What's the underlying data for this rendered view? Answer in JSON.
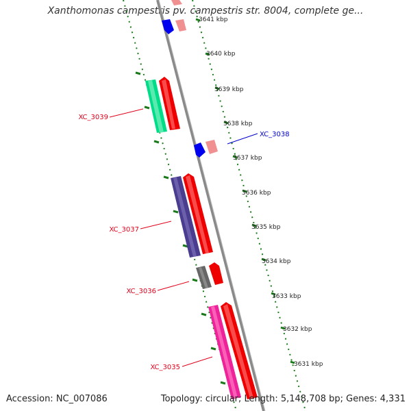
{
  "title": "Xanthomonas campestris pv. campestris str. 8004, complete ge...",
  "accession_text": "Accession: NC_007086",
  "summary_text": "Topology: circular; Length: 5,148,708 bp; Genes: 4,331",
  "kbp_labels": [
    "3641 kbp",
    "3640 kbp",
    "3639 kbp",
    "3638 kbp",
    "3637 kbp",
    "3636 kbp",
    "3635 kbp",
    "3634 kbp",
    "3633 kbp",
    "3632 kbp",
    "3631 kbp"
  ],
  "gene_labels": [
    {
      "name": "XC_3039",
      "color": "#e0001b"
    },
    {
      "name": "XC_3038",
      "color": "#0000cc"
    },
    {
      "name": "XC_3037",
      "color": "#e0001b"
    },
    {
      "name": "XC_3036",
      "color": "#e0001b"
    },
    {
      "name": "XC_3035",
      "color": "#e0001b"
    }
  ],
  "colors": {
    "backbone": "#8a8a8a",
    "ruler": "#1a7a1a",
    "cds_forward": "#ee0000",
    "cds_pink_light": "#f09090",
    "cds_blue": "#0000ee",
    "gene_green": "#00dd88",
    "gene_purple": "#4a3d8f",
    "gene_gray": "#666666",
    "gene_magenta": "#ee2299"
  }
}
